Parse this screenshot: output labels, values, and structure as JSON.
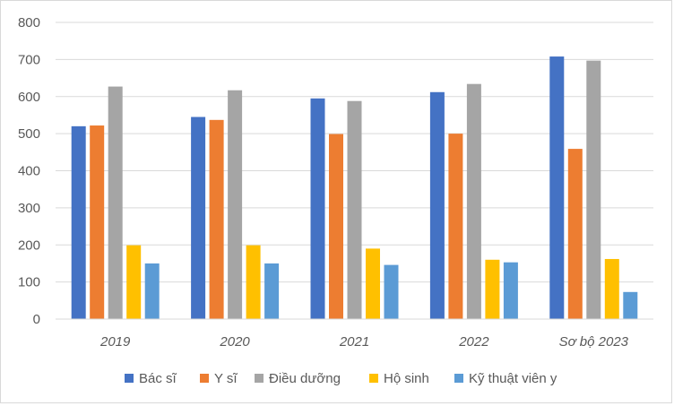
{
  "chart_data": {
    "type": "bar",
    "categories": [
      "2019",
      "2020",
      "2021",
      "2022",
      "Sơ bộ 2023"
    ],
    "series": [
      {
        "name": "Bác sĩ",
        "color": "#4472C4",
        "values": [
          520,
          545,
          595,
          612,
          708
        ]
      },
      {
        "name": "Y sĩ",
        "color": "#ED7D31",
        "values": [
          522,
          537,
          499,
          500,
          459
        ]
      },
      {
        "name": "Điều dưỡng",
        "color": "#A5A5A5",
        "values": [
          627,
          617,
          588,
          634,
          697
        ]
      },
      {
        "name": "Hộ sinh",
        "color": "#FFC000",
        "values": [
          199,
          199,
          190,
          160,
          162
        ]
      },
      {
        "name": "Kỹ thuật viên y",
        "color": "#5B9BD5",
        "values": [
          150,
          150,
          146,
          153,
          73
        ]
      }
    ],
    "ylim": [
      0,
      800
    ],
    "yticks": [
      0,
      100,
      200,
      300,
      400,
      500,
      600,
      700,
      800
    ],
    "grid": true,
    "legend_position": "bottom"
  }
}
